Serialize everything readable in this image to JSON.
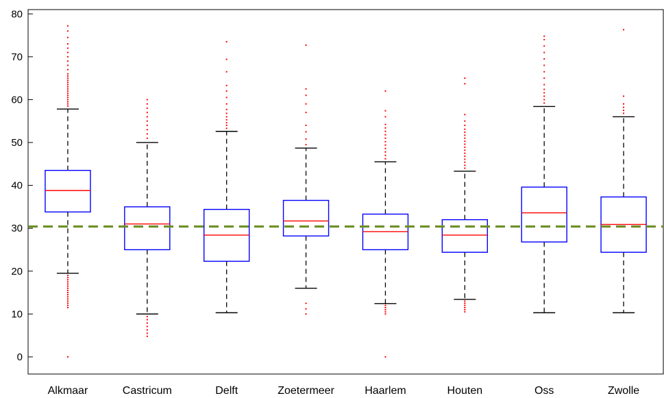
{
  "chart_data": {
    "type": "box",
    "title": "",
    "xlabel": "",
    "ylabel": "",
    "ylim": [
      -4,
      81
    ],
    "yticks": [
      0,
      10,
      20,
      30,
      40,
      50,
      60,
      70,
      80
    ],
    "grid": false,
    "reference_line": {
      "y": 30.4,
      "style": "dashed",
      "color": "#6b8e23"
    },
    "colors": {
      "box": "#0000ff",
      "median": "#ff0000",
      "whisker": "#000000",
      "outlier": "#ff0000"
    },
    "categories": [
      "Alkmaar",
      "Castricum",
      "Delft",
      "Zoetermeer",
      "Haarlem",
      "Houten",
      "Oss",
      "Zwolle"
    ],
    "boxes": [
      {
        "name": "Alkmaar",
        "whisker_low": 19.5,
        "q1": 33.8,
        "median": 38.8,
        "q3": 43.5,
        "whisker_high": 57.8,
        "outliers": [
          0,
          11.5,
          12.0,
          12.5,
          13.0,
          13.5,
          14.0,
          14.5,
          15.0,
          15.5,
          16.0,
          16.5,
          17.0,
          17.5,
          18.0,
          18.5,
          19.0,
          58.5,
          59.0,
          59.5,
          60.0,
          60.5,
          61.0,
          61.5,
          62.0,
          62.5,
          63.0,
          63.5,
          64.0,
          64.5,
          65.0,
          65.5,
          66.0,
          67.0,
          68.0,
          69.0,
          70.0,
          71.0,
          72.0,
          73.0,
          74.5,
          76.0,
          77.2
        ]
      },
      {
        "name": "Castricum",
        "whisker_low": 10.0,
        "q1": 25.0,
        "median": 31.0,
        "q3": 35.0,
        "whisker_high": 50.0,
        "outliers": [
          4.8,
          5.5,
          6.3,
          7.1,
          7.9,
          8.7,
          9.4,
          51.0,
          52.0,
          53.0,
          54.0,
          55.0,
          56.0,
          57.0,
          58.0,
          59.0,
          60.0
        ]
      },
      {
        "name": "Delft",
        "whisker_low": 10.3,
        "q1": 22.3,
        "median": 28.4,
        "q3": 34.4,
        "whisker_high": 52.6,
        "outliers": [
          53.3,
          54.0,
          54.6,
          55.3,
          56.0,
          56.8,
          57.7,
          59.0,
          60.5,
          62.0,
          63.3,
          66.5,
          69.4,
          73.5
        ]
      },
      {
        "name": "Zoetermeer",
        "whisker_low": 16.0,
        "q1": 28.2,
        "median": 31.7,
        "q3": 36.5,
        "whisker_high": 48.7,
        "outliers": [
          10.0,
          11.2,
          12.5,
          49.5,
          50.8,
          52.5,
          54.0,
          57.0,
          59.0,
          61.0,
          62.5,
          72.7
        ]
      },
      {
        "name": "Haarlem",
        "whisker_low": 12.4,
        "q1": 25.0,
        "median": 29.2,
        "q3": 33.3,
        "whisker_high": 45.5,
        "outliers": [
          0,
          10.0,
          10.5,
          11.0,
          11.5,
          12.0,
          46.2,
          47.0,
          47.8,
          48.6,
          49.4,
          50.2,
          51.0,
          51.8,
          52.6,
          53.4,
          54.2,
          56.0,
          57.4,
          62.0
        ]
      },
      {
        "name": "Houten",
        "whisker_low": 13.4,
        "q1": 24.4,
        "median": 28.4,
        "q3": 32.0,
        "whisker_high": 43.3,
        "outliers": [
          10.5,
          11.0,
          11.5,
          12.0,
          12.5,
          13.0,
          44.0,
          44.7,
          45.4,
          46.1,
          46.8,
          47.5,
          48.2,
          48.9,
          49.6,
          50.3,
          51.0,
          51.7,
          52.4,
          53.1,
          54.0,
          55.0,
          56.5,
          63.7,
          65.0
        ]
      },
      {
        "name": "Oss",
        "whisker_low": 10.3,
        "q1": 26.8,
        "median": 33.6,
        "q3": 39.6,
        "whisker_high": 58.4,
        "outliers": [
          59.2,
          60.0,
          60.8,
          61.6,
          62.4,
          63.5,
          65.0,
          66.5,
          68.0,
          69.5,
          71.0,
          72.5,
          74.0,
          74.8
        ]
      },
      {
        "name": "Zwolle",
        "whisker_low": 10.3,
        "q1": 24.4,
        "median": 30.9,
        "q3": 37.3,
        "whisker_high": 56.0,
        "outliers": [
          56.8,
          57.5,
          58.2,
          59.0,
          60.8,
          76.3
        ]
      }
    ]
  }
}
